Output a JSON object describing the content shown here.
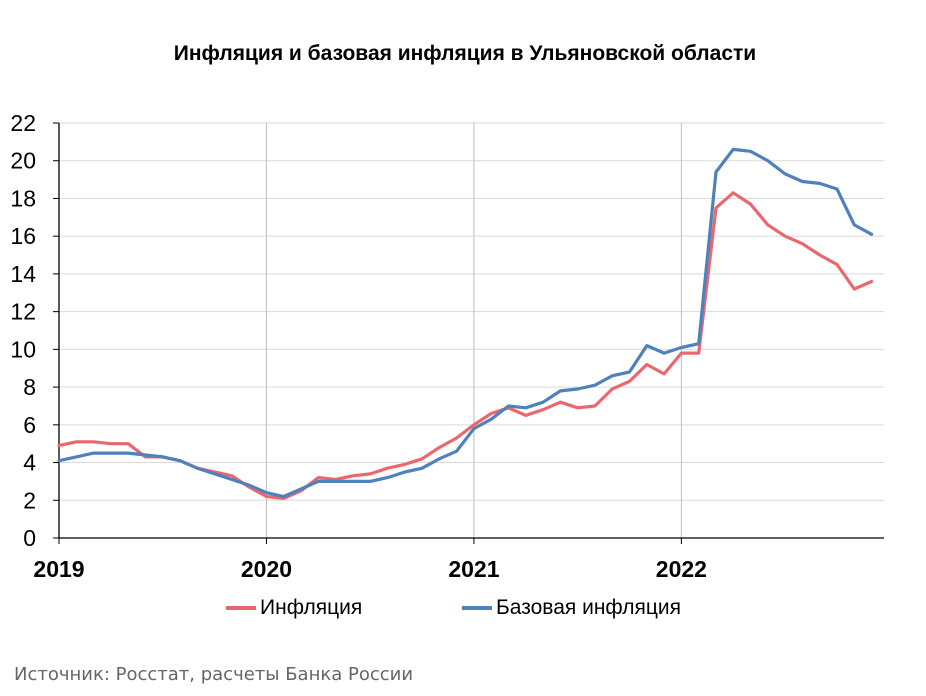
{
  "chart_data": {
    "type": "line",
    "title": "Инфляция и базовая инфляция в Ульяновской области",
    "xlabel": "",
    "ylabel": "",
    "x_tick_labels": [
      "2019",
      "2020",
      "2021",
      "2022"
    ],
    "x_range": [
      "2019-01",
      "2022-12"
    ],
    "ylim": [
      0,
      22
    ],
    "y_ticks": [
      0,
      2,
      4,
      6,
      8,
      10,
      12,
      14,
      16,
      18,
      20,
      22
    ],
    "grid": {
      "horizontal": true,
      "vertical_at_years": true
    },
    "legend_position": "bottom",
    "months": [
      "2019-01",
      "2019-02",
      "2019-03",
      "2019-04",
      "2019-05",
      "2019-06",
      "2019-07",
      "2019-08",
      "2019-09",
      "2019-10",
      "2019-11",
      "2019-12",
      "2020-01",
      "2020-02",
      "2020-03",
      "2020-04",
      "2020-05",
      "2020-06",
      "2020-07",
      "2020-08",
      "2020-09",
      "2020-10",
      "2020-11",
      "2020-12",
      "2021-01",
      "2021-02",
      "2021-03",
      "2021-04",
      "2021-05",
      "2021-06",
      "2021-07",
      "2021-08",
      "2021-09",
      "2021-10",
      "2021-11",
      "2021-12",
      "2022-01",
      "2022-02",
      "2022-03",
      "2022-04",
      "2022-05",
      "2022-06",
      "2022-07",
      "2022-08",
      "2022-09",
      "2022-10",
      "2022-11",
      "2022-12"
    ],
    "series": [
      {
        "name": "Инфляция",
        "color": "#e8686e",
        "values": [
          4.9,
          5.1,
          5.1,
          5.0,
          5.0,
          4.3,
          4.3,
          4.1,
          3.7,
          3.5,
          3.3,
          2.7,
          2.2,
          2.1,
          2.5,
          3.2,
          3.1,
          3.3,
          3.4,
          3.7,
          3.9,
          4.2,
          4.8,
          5.3,
          6.0,
          6.6,
          6.9,
          6.5,
          6.8,
          7.2,
          6.9,
          7.0,
          7.9,
          8.3,
          9.2,
          8.7,
          9.8,
          9.8,
          17.5,
          18.3,
          17.7,
          16.6,
          16.0,
          15.6,
          15.0,
          14.5,
          13.2,
          13.6
        ]
      },
      {
        "name": "Базовая инфляция",
        "color": "#4f81bd",
        "values": [
          4.1,
          4.3,
          4.5,
          4.5,
          4.5,
          4.4,
          4.3,
          4.1,
          3.7,
          3.4,
          3.1,
          2.8,
          2.4,
          2.2,
          2.6,
          3.0,
          3.0,
          3.0,
          3.0,
          3.2,
          3.5,
          3.7,
          4.2,
          4.6,
          5.8,
          6.3,
          7.0,
          6.9,
          7.2,
          7.8,
          7.9,
          8.1,
          8.6,
          8.8,
          10.2,
          9.8,
          10.1,
          10.3,
          19.4,
          20.6,
          20.5,
          20.0,
          19.3,
          18.9,
          18.8,
          18.5,
          16.6,
          16.1
        ]
      }
    ]
  },
  "source_note": "Источник: Росстат, расчеты Банка России"
}
